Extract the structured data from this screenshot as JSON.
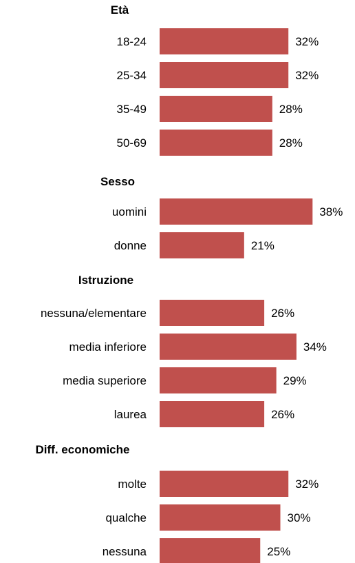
{
  "chart_data": {
    "type": "bar",
    "orientation": "horizontal",
    "bar_color": "#c0504d",
    "value_suffix": "%",
    "groups": [
      {
        "title": "Età",
        "categories": [
          "18-24",
          "25-34",
          "35-49",
          "50-69"
        ],
        "values": [
          32,
          32,
          28,
          28
        ],
        "labels": [
          "32%",
          "32%",
          "28%",
          "28%"
        ]
      },
      {
        "title": "Sesso",
        "categories": [
          "uomini",
          "donne"
        ],
        "values": [
          38,
          21
        ],
        "labels": [
          "38%",
          "21%"
        ]
      },
      {
        "title": "Istruzione",
        "categories": [
          "nessuna/elementare",
          "media inferiore",
          "media superiore",
          "laurea"
        ],
        "values": [
          26,
          34,
          29,
          26
        ],
        "labels": [
          "26%",
          "34%",
          "29%",
          "26%"
        ]
      },
      {
        "title": "Diff. economiche",
        "categories": [
          "molte",
          "qualche",
          "nessuna"
        ],
        "values": [
          32,
          30,
          25
        ],
        "labels": [
          "32%",
          "30%",
          "25%"
        ]
      }
    ]
  }
}
